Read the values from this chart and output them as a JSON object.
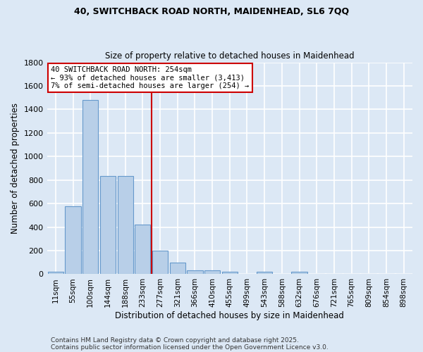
{
  "title1": "40, SWITCHBACK ROAD NORTH, MAIDENHEAD, SL6 7QQ",
  "title2": "Size of property relative to detached houses in Maidenhead",
  "xlabel": "Distribution of detached houses by size in Maidenhead",
  "ylabel": "Number of detached properties",
  "categories": [
    "11sqm",
    "55sqm",
    "100sqm",
    "144sqm",
    "188sqm",
    "233sqm",
    "277sqm",
    "321sqm",
    "366sqm",
    "410sqm",
    "455sqm",
    "499sqm",
    "543sqm",
    "588sqm",
    "632sqm",
    "676sqm",
    "721sqm",
    "765sqm",
    "809sqm",
    "854sqm",
    "898sqm"
  ],
  "values": [
    20,
    580,
    1480,
    835,
    835,
    420,
    200,
    100,
    35,
    30,
    18,
    0,
    18,
    0,
    18,
    0,
    0,
    0,
    0,
    0,
    0
  ],
  "bar_color": "#b8cfe8",
  "bar_edge_color": "#6699cc",
  "vline_x_index": 6,
  "vline_color": "#cc0000",
  "ylim": [
    0,
    1800
  ],
  "yticks": [
    0,
    200,
    400,
    600,
    800,
    1000,
    1200,
    1400,
    1600,
    1800
  ],
  "annotation_title": "40 SWITCHBACK ROAD NORTH: 254sqm",
  "annotation_line1": "← 93% of detached houses are smaller (3,413)",
  "annotation_line2": "7% of semi-detached houses are larger (254) →",
  "annotation_box_color": "#ffffff",
  "annotation_box_edge_color": "#cc0000",
  "bg_color": "#dce8f5",
  "plot_bg_color": "#dce8f5",
  "grid_color": "#ffffff",
  "footer1": "Contains HM Land Registry data © Crown copyright and database right 2025.",
  "footer2": "Contains public sector information licensed under the Open Government Licence v3.0."
}
